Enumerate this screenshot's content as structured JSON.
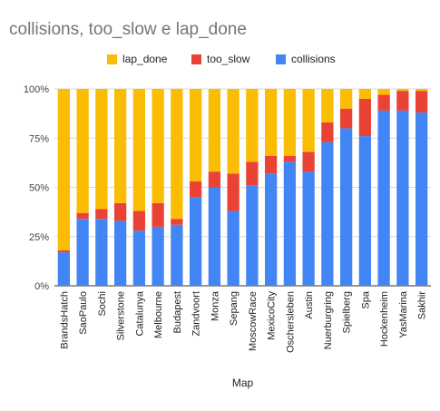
{
  "chart_data": {
    "type": "bar",
    "stacked": true,
    "percent_stacked": true,
    "title": "collisions, too_slow e lap_done",
    "xlabel": "Map",
    "ylabel": "",
    "ylim": [
      0,
      100
    ],
    "yticks": [
      "0%",
      "25%",
      "50%",
      "75%",
      "100%"
    ],
    "grid": true,
    "legend_position": "top",
    "categories": [
      "BrandsHatch",
      "SaoPaulo",
      "Sochi",
      "Silverstone",
      "Catalunya",
      "Melbourne",
      "Budapest",
      "Zandvoort",
      "Monza",
      "Sepang",
      "MoscowRace",
      "MexicoCity",
      "Oschersleben",
      "Austin",
      "Nuerburgring",
      "Spielberg",
      "Spa",
      "Hockenheim",
      "YasMarina",
      "Sakhir"
    ],
    "series": [
      {
        "name": "collisions",
        "color": "#4285f4",
        "values": [
          17,
          34,
          34,
          33,
          28,
          30,
          31,
          45,
          50,
          38,
          51,
          57,
          63,
          58,
          73,
          80,
          76,
          89,
          89,
          88
        ]
      },
      {
        "name": "too_slow",
        "color": "#ea4335",
        "values": [
          1,
          3,
          5,
          9,
          10,
          12,
          3,
          8,
          8,
          19,
          12,
          9,
          3,
          10,
          10,
          10,
          19,
          8,
          10,
          11
        ]
      },
      {
        "name": "lap_done",
        "color": "#fbbc04",
        "values": [
          82,
          63,
          61,
          58,
          62,
          58,
          66,
          47,
          42,
          43,
          37,
          34,
          34,
          32,
          17,
          10,
          5,
          3,
          1,
          1
        ]
      }
    ],
    "legend_order": [
      "lap_done",
      "too_slow",
      "collisions"
    ]
  }
}
